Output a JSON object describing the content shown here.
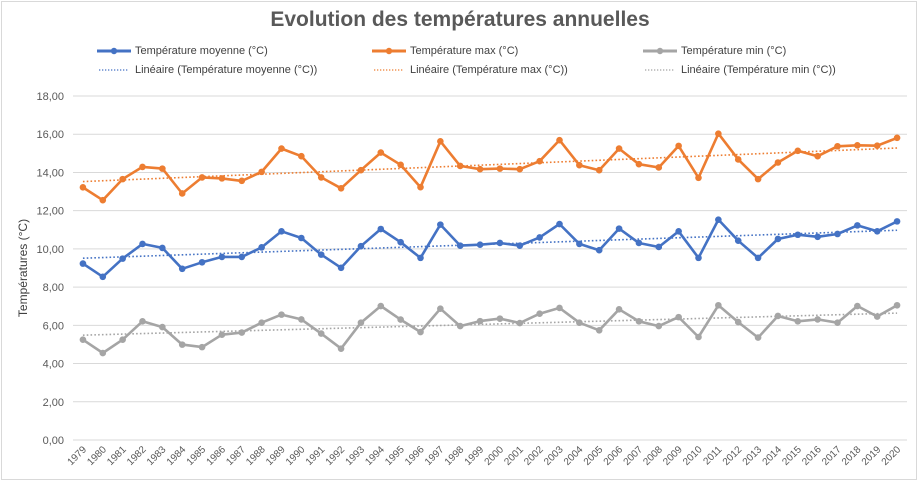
{
  "chart_data": {
    "type": "line",
    "title": "Evolution des températures annuelles",
    "xlabel": "",
    "ylabel": "Températures (°C)",
    "ylim": [
      0,
      18
    ],
    "y_ticks": [
      "0,00",
      "2,00",
      "4,00",
      "6,00",
      "8,00",
      "10,00",
      "12,00",
      "14,00",
      "16,00",
      "18,00"
    ],
    "grid": true,
    "legend_position": "top",
    "categories": [
      "1979",
      "1980",
      "1981",
      "1982",
      "1983",
      "1984",
      "1985",
      "1986",
      "1987",
      "1988",
      "1989",
      "1990",
      "1991",
      "1992",
      "1993",
      "1994",
      "1995",
      "1996",
      "1997",
      "1998",
      "1999",
      "2000",
      "2001",
      "2002",
      "2003",
      "2004",
      "2005",
      "2006",
      "2007",
      "2008",
      "2009",
      "2010",
      "2011",
      "2012",
      "2013",
      "2014",
      "2015",
      "2016",
      "2017",
      "2018",
      "2019",
      "2020"
    ],
    "series": [
      {
        "name": "Température moyenne (°C)",
        "trend_name": "Linéaire (Température moyenne (°C))",
        "color": "#4472c4",
        "values": [
          9.23,
          8.54,
          9.49,
          10.26,
          10.05,
          8.96,
          9.3,
          9.58,
          9.58,
          10.08,
          10.92,
          10.57,
          9.7,
          9.01,
          10.14,
          11.04,
          10.35,
          9.53,
          11.27,
          10.17,
          10.22,
          10.31,
          10.17,
          10.6,
          11.3,
          10.26,
          9.93,
          11.06,
          10.31,
          10.1,
          10.92,
          9.53,
          11.53,
          10.43,
          9.53,
          10.52,
          10.74,
          10.63,
          10.78,
          11.23,
          10.92,
          11.44
        ]
      },
      {
        "name": "Température max (°C)",
        "trend_name": "Linéaire (Température max (°C))",
        "color": "#ed7d31",
        "values": [
          13.22,
          12.55,
          13.65,
          14.29,
          14.2,
          12.9,
          13.74,
          13.69,
          13.56,
          14.03,
          15.25,
          14.85,
          13.74,
          13.17,
          14.12,
          15.04,
          14.4,
          13.23,
          15.63,
          14.34,
          14.17,
          14.2,
          14.17,
          14.59,
          15.69,
          14.38,
          14.12,
          15.25,
          14.43,
          14.26,
          15.39,
          13.72,
          16.03,
          14.68,
          13.65,
          14.52,
          15.13,
          14.85,
          15.37,
          15.42,
          15.4,
          15.81
        ]
      },
      {
        "name": "Température min (°C)",
        "trend_name": "Linéaire (Température min (°C))",
        "color": "#a5a5a5",
        "values": [
          5.25,
          4.55,
          5.25,
          6.21,
          5.91,
          4.99,
          4.86,
          5.51,
          5.62,
          6.14,
          6.56,
          6.31,
          5.57,
          4.78,
          6.14,
          7.01,
          6.3,
          5.65,
          6.87,
          5.96,
          6.22,
          6.35,
          6.12,
          6.61,
          6.91,
          6.14,
          5.74,
          6.84,
          6.21,
          5.96,
          6.43,
          5.39,
          7.05,
          6.17,
          5.36,
          6.49,
          6.21,
          6.31,
          6.14,
          7.01,
          6.46,
          7.05
        ]
      }
    ]
  }
}
